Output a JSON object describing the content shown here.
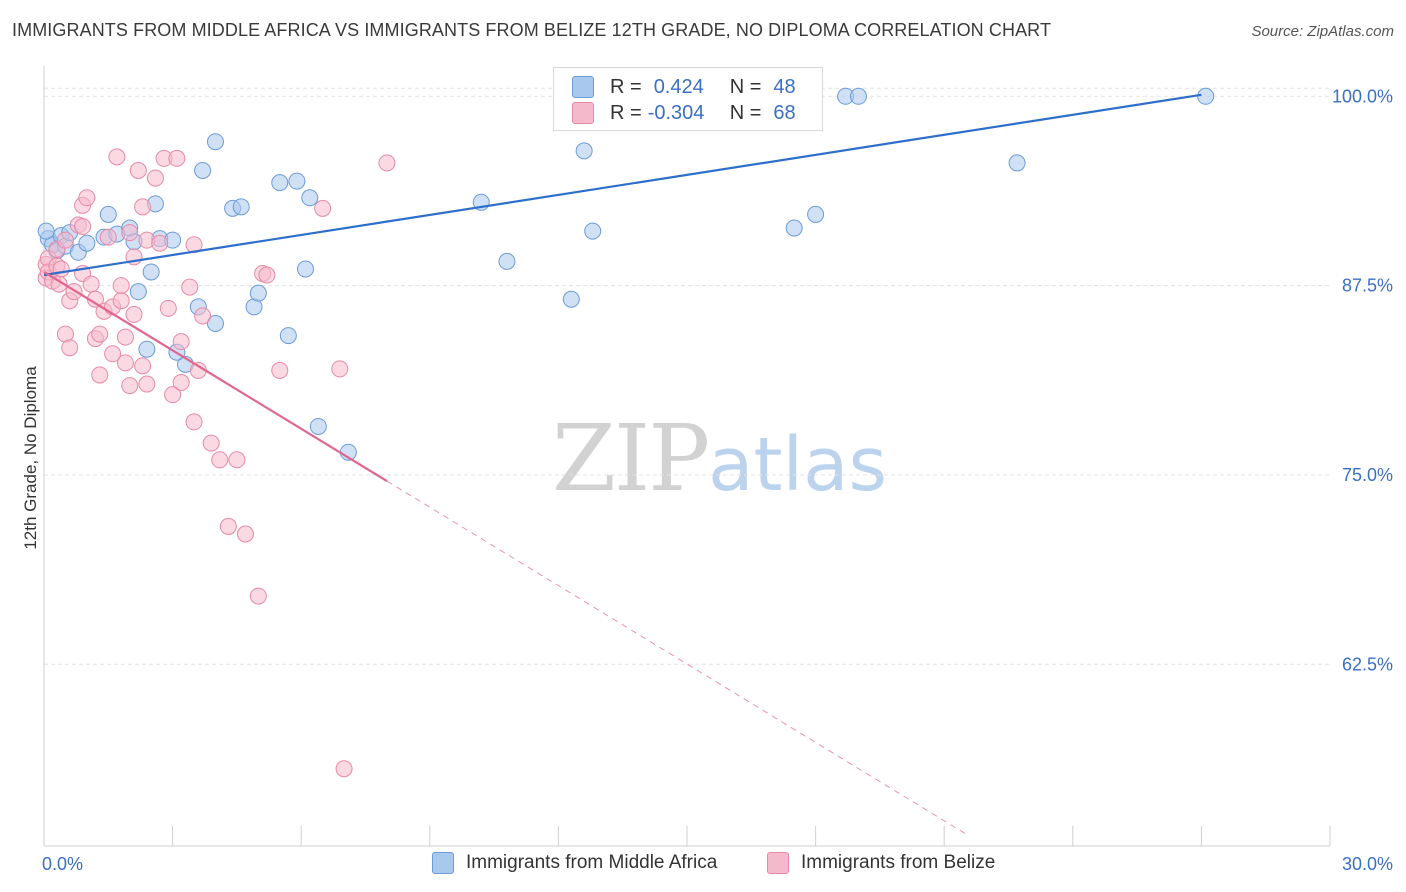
{
  "title": "IMMIGRANTS FROM MIDDLE AFRICA VS IMMIGRANTS FROM BELIZE 12TH GRADE, NO DIPLOMA CORRELATION CHART",
  "source": "Source: ZipAtlas.com",
  "watermark": {
    "zip": "ZIP",
    "atlas": "atlas"
  },
  "colors": {
    "blue_fill": "#a9c8ee",
    "blue_stroke": "#6c9bd8",
    "blue_line": "#2e6fcc",
    "pink_fill": "#f5b9cc",
    "pink_stroke": "#e68aa8",
    "pink_line": "#e06690",
    "tick_label": "#3b6fc4",
    "grid": "#e3e3e3"
  },
  "legend": {
    "r_label": "R =",
    "n_label": "N =",
    "series": [
      {
        "r": "0.424",
        "n": "48"
      },
      {
        "r": "-0.304",
        "n": "68"
      }
    ]
  },
  "bottom_legend": [
    {
      "label": "Immigrants from Middle Africa"
    },
    {
      "label": "Immigrants from Belize"
    }
  ],
  "chart_data": {
    "type": "scatter",
    "ylabel": "12th Grade, No Diploma",
    "xlim": [
      0,
      30
    ],
    "ylim": [
      50.5,
      102.0
    ],
    "x_tick_labels": [
      {
        "x": 0,
        "label": "0.0%"
      },
      {
        "x": 30,
        "label": "30.0%"
      }
    ],
    "y_tick_labels": [
      {
        "y": 100.0,
        "label": "100.0%"
      },
      {
        "y": 87.5,
        "label": "87.5%"
      },
      {
        "y": 75.0,
        "label": "75.0%"
      },
      {
        "y": 62.5,
        "label": "62.5%"
      }
    ],
    "grid": true,
    "series": [
      {
        "name": "Immigrants from Middle Africa",
        "trend": {
          "x": [
            0.0,
            27.0
          ],
          "y": [
            88.2,
            100.1
          ],
          "solid_until": 27.0
        },
        "points": [
          [
            0.1,
            90.6
          ],
          [
            0.2,
            90.2
          ],
          [
            0.3,
            89.8
          ],
          [
            0.4,
            90.8
          ],
          [
            0.5,
            90.1
          ],
          [
            0.6,
            91.0
          ],
          [
            0.8,
            89.7
          ],
          [
            1.0,
            90.3
          ],
          [
            1.4,
            90.7
          ],
          [
            1.5,
            92.2
          ],
          [
            1.7,
            90.9
          ],
          [
            2.0,
            91.3
          ],
          [
            2.1,
            90.4
          ],
          [
            2.2,
            87.1
          ],
          [
            2.4,
            83.3
          ],
          [
            2.5,
            88.4
          ],
          [
            2.6,
            92.9
          ],
          [
            2.7,
            90.6
          ],
          [
            3.0,
            90.5
          ],
          [
            3.3,
            82.3
          ],
          [
            3.1,
            83.1
          ],
          [
            3.6,
            86.1
          ],
          [
            3.7,
            95.1
          ],
          [
            4.0,
            85.0
          ],
          [
            4.0,
            97.0
          ],
          [
            4.4,
            92.6
          ],
          [
            4.6,
            92.7
          ],
          [
            4.9,
            86.1
          ],
          [
            5.0,
            87.0
          ],
          [
            5.5,
            94.3
          ],
          [
            5.7,
            84.2
          ],
          [
            5.9,
            94.4
          ],
          [
            6.1,
            88.6
          ],
          [
            6.2,
            93.3
          ],
          [
            6.4,
            78.2
          ],
          [
            7.1,
            76.5
          ],
          [
            10.2,
            93.0
          ],
          [
            10.8,
            89.1
          ],
          [
            12.3,
            86.6
          ],
          [
            12.6,
            96.4
          ],
          [
            12.8,
            91.1
          ],
          [
            17.5,
            91.3
          ],
          [
            18.0,
            92.2
          ],
          [
            18.7,
            100.0
          ],
          [
            19.0,
            100.0
          ],
          [
            22.7,
            95.6
          ],
          [
            27.1,
            100.0
          ],
          [
            0.05,
            91.1
          ]
        ]
      },
      {
        "name": "Immigrants from Belize",
        "trend": {
          "x": [
            0.0,
            21.5
          ],
          "y": [
            88.4,
            51.3
          ],
          "solid_until": 8.0
        },
        "points": [
          [
            0.05,
            88.9
          ],
          [
            0.05,
            88.0
          ],
          [
            0.1,
            89.3
          ],
          [
            0.1,
            88.4
          ],
          [
            0.2,
            87.8
          ],
          [
            0.3,
            88.8
          ],
          [
            0.3,
            89.9
          ],
          [
            0.35,
            87.6
          ],
          [
            0.4,
            88.6
          ],
          [
            0.5,
            90.5
          ],
          [
            0.6,
            86.5
          ],
          [
            0.5,
            84.3
          ],
          [
            0.6,
            83.4
          ],
          [
            0.8,
            91.5
          ],
          [
            0.9,
            91.4
          ],
          [
            0.9,
            92.8
          ],
          [
            0.9,
            88.3
          ],
          [
            1.0,
            93.3
          ],
          [
            1.1,
            87.6
          ],
          [
            1.2,
            86.6
          ],
          [
            1.2,
            84.0
          ],
          [
            1.3,
            84.3
          ],
          [
            1.3,
            81.6
          ],
          [
            1.4,
            85.8
          ],
          [
            1.5,
            90.7
          ],
          [
            1.6,
            86.1
          ],
          [
            1.6,
            83.0
          ],
          [
            1.7,
            96.0
          ],
          [
            1.8,
            87.5
          ],
          [
            1.8,
            86.5
          ],
          [
            1.9,
            82.4
          ],
          [
            2.0,
            91.0
          ],
          [
            2.0,
            80.9
          ],
          [
            2.1,
            85.6
          ],
          [
            2.1,
            89.4
          ],
          [
            2.2,
            95.1
          ],
          [
            2.3,
            82.2
          ],
          [
            2.3,
            92.7
          ],
          [
            2.4,
            90.5
          ],
          [
            2.4,
            81.0
          ],
          [
            2.6,
            94.6
          ],
          [
            2.7,
            90.3
          ],
          [
            2.8,
            95.9
          ],
          [
            3.0,
            80.3
          ],
          [
            3.1,
            95.9
          ],
          [
            3.2,
            83.8
          ],
          [
            3.2,
            81.1
          ],
          [
            3.4,
            87.4
          ],
          [
            3.5,
            90.2
          ],
          [
            3.5,
            78.5
          ],
          [
            3.6,
            81.9
          ],
          [
            3.9,
            77.1
          ],
          [
            4.1,
            76.0
          ],
          [
            4.3,
            71.6
          ],
          [
            4.5,
            76.0
          ],
          [
            4.7,
            71.1
          ],
          [
            5.0,
            67.0
          ],
          [
            5.1,
            88.3
          ],
          [
            5.2,
            88.2
          ],
          [
            5.5,
            81.9
          ],
          [
            6.5,
            92.6
          ],
          [
            6.9,
            82.0
          ],
          [
            7.0,
            55.6
          ],
          [
            8.0,
            95.6
          ],
          [
            1.9,
            84.1
          ],
          [
            2.9,
            86.0
          ],
          [
            3.7,
            85.5
          ],
          [
            0.7,
            87.1
          ]
        ]
      }
    ]
  }
}
